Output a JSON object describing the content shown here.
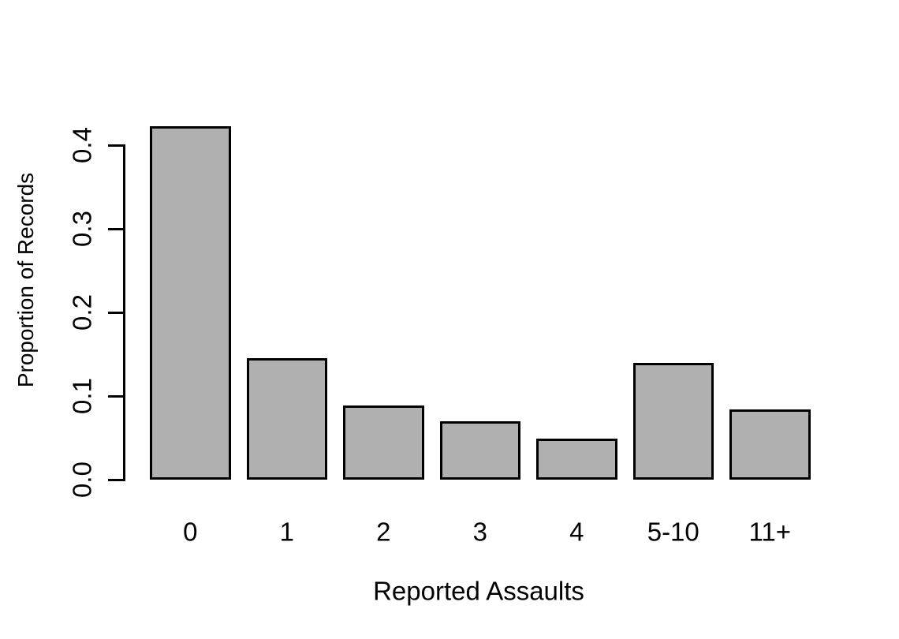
{
  "figure": {
    "background_color": "#ffffff",
    "text_color": "#000000"
  },
  "chart_data": {
    "type": "bar",
    "title": "",
    "xlabel": "Reported Assaults",
    "ylabel": "Proportion of Records",
    "categories": [
      "0",
      "1",
      "2",
      "3",
      "4",
      "5-10",
      "11+"
    ],
    "values": [
      0.423,
      0.145,
      0.089,
      0.07,
      0.049,
      0.14,
      0.084
    ],
    "ytick_labels": [
      "0.0",
      "0.1",
      "0.2",
      "0.3",
      "0.4"
    ],
    "ytick_values": [
      0.0,
      0.1,
      0.2,
      0.3,
      0.4
    ],
    "ylim": [
      0,
      0.44
    ],
    "grid": false,
    "legend_position": "none",
    "bar_color": "#b0b0b0",
    "bar_border_color": "#000000",
    "axis_color": "#000000"
  }
}
